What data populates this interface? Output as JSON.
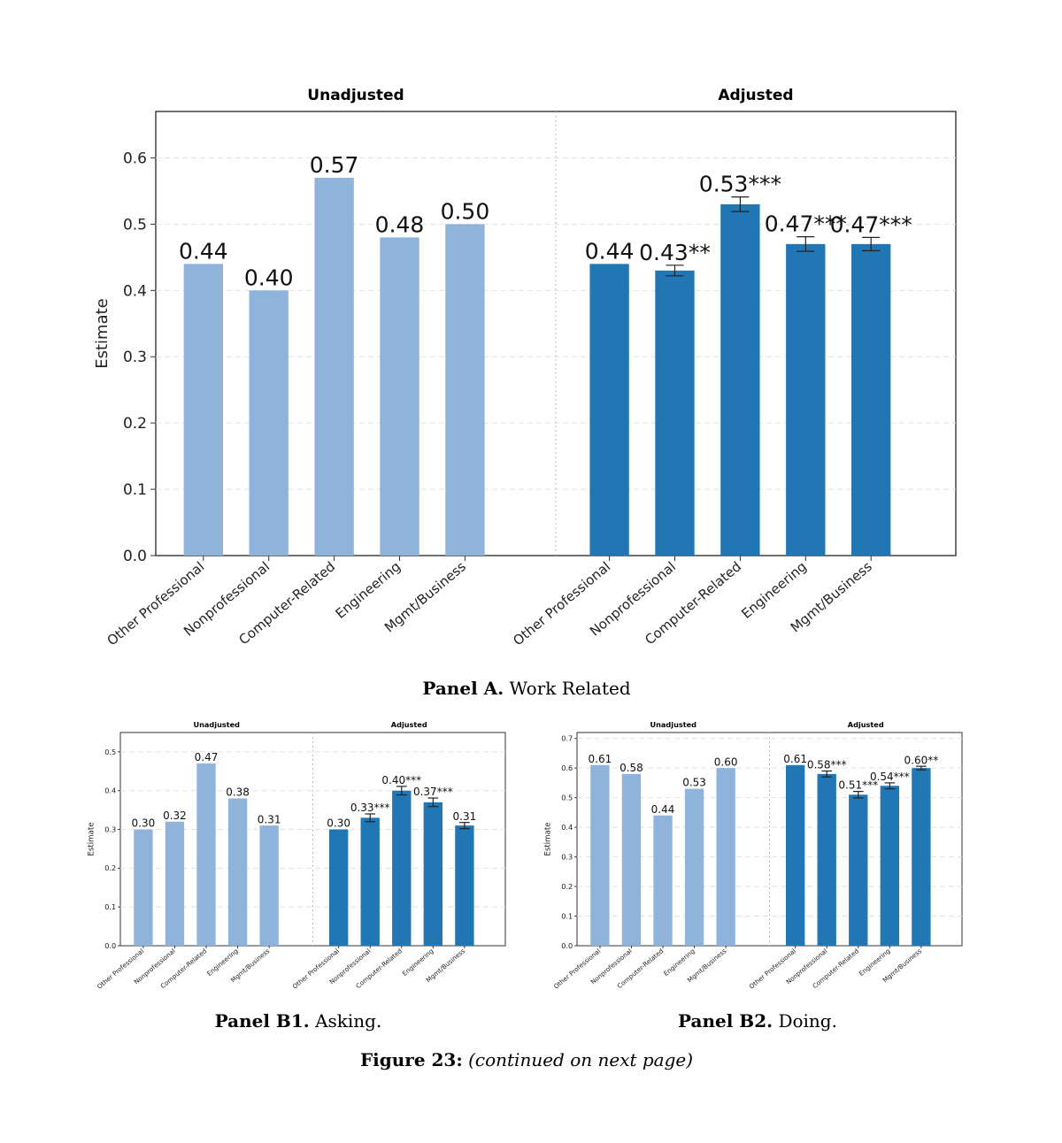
{
  "colors": {
    "unadjusted": "#8fb3da",
    "adjusted": "#2077b4",
    "axis": "#333333",
    "grid": "#e2e2e2"
  },
  "captions": {
    "panel_a_label": "Panel A.",
    "panel_a_text": "Work Related",
    "panel_b1_label": "Panel B1.",
    "panel_b1_text": "Asking.",
    "panel_b2_label": "Panel B2.",
    "panel_b2_text": "Doing.",
    "figure_label": "Figure 23:",
    "figure_text": "(continued on next page)"
  },
  "chart_data": [
    {
      "id": "panelA",
      "type": "bar",
      "ylabel": "Estimate",
      "ylim": [
        0,
        0.67
      ],
      "yticks": [
        0.0,
        0.1,
        0.2,
        0.3,
        0.4,
        0.5,
        0.6
      ],
      "ytick_labels": [
        "0.0",
        "0.1",
        "0.2",
        "0.3",
        "0.4",
        "0.5",
        "0.6"
      ],
      "grid": true,
      "groups": [
        {
          "title": "Unadjusted",
          "categories": [
            "Other Professional",
            "Nonprofessional",
            "Computer-Related",
            "Engineering",
            "Mgmt/Business"
          ],
          "values": [
            0.44,
            0.4,
            0.57,
            0.48,
            0.5
          ],
          "labels": [
            "0.44",
            "0.40",
            "0.57",
            "0.48",
            "0.50"
          ],
          "errors": [
            0,
            0,
            0,
            0,
            0
          ]
        },
        {
          "title": "Adjusted",
          "categories": [
            "Other Professional",
            "Nonprofessional",
            "Computer-Related",
            "Engineering",
            "Mgmt/Business"
          ],
          "values": [
            0.44,
            0.43,
            0.53,
            0.47,
            0.47
          ],
          "labels": [
            "0.44",
            "0.43**",
            "0.53***",
            "0.47***",
            "0.47***"
          ],
          "errors": [
            0,
            0.008,
            0.011,
            0.011,
            0.01
          ]
        }
      ]
    },
    {
      "id": "panelB1",
      "type": "bar",
      "ylabel": "Estimate",
      "ylim": [
        0,
        0.55
      ],
      "yticks": [
        0.0,
        0.1,
        0.2,
        0.3,
        0.4,
        0.5
      ],
      "ytick_labels": [
        "0.0",
        "0.1",
        "0.2",
        "0.3",
        "0.4",
        "0.5"
      ],
      "grid": true,
      "groups": [
        {
          "title": "Unadjusted",
          "categories": [
            "Other Professional",
            "Nonprofessional",
            "Computer-Related",
            "Engineering",
            "Mgmt/Business"
          ],
          "values": [
            0.3,
            0.32,
            0.47,
            0.38,
            0.31
          ],
          "labels": [
            "0.30",
            "0.32",
            "0.47",
            "0.38",
            "0.31"
          ],
          "errors": [
            0,
            0,
            0,
            0,
            0
          ]
        },
        {
          "title": "Adjusted",
          "categories": [
            "Other Professional",
            "Nonprofessional",
            "Computer-Related",
            "Engineering",
            "Mgmt/Business"
          ],
          "values": [
            0.3,
            0.33,
            0.4,
            0.37,
            0.31
          ],
          "labels": [
            "0.30",
            "0.33***",
            "0.40***",
            "0.37***",
            "0.31"
          ],
          "errors": [
            0,
            0.01,
            0.011,
            0.011,
            0.008
          ]
        }
      ]
    },
    {
      "id": "panelB2",
      "type": "bar",
      "ylabel": "Estimate",
      "ylim": [
        0,
        0.72
      ],
      "yticks": [
        0.0,
        0.1,
        0.2,
        0.3,
        0.4,
        0.5,
        0.6,
        0.7
      ],
      "ytick_labels": [
        "0.0",
        "0.1",
        "0.2",
        "0.3",
        "0.4",
        "0.5",
        "0.6",
        "0.7"
      ],
      "grid": true,
      "groups": [
        {
          "title": "Unadjusted",
          "categories": [
            "Other Professional",
            "Nonprofessional",
            "Computer-Related",
            "Engineering",
            "Mgmt/Business"
          ],
          "values": [
            0.61,
            0.58,
            0.44,
            0.53,
            0.6
          ],
          "labels": [
            "0.61",
            "0.58",
            "0.44",
            "0.53",
            "0.60"
          ],
          "errors": [
            0,
            0,
            0,
            0,
            0
          ]
        },
        {
          "title": "Adjusted",
          "categories": [
            "Other Professional",
            "Nonprofessional",
            "Computer-Related",
            "Engineering",
            "Mgmt/Business"
          ],
          "values": [
            0.61,
            0.58,
            0.51,
            0.54,
            0.6
          ],
          "labels": [
            "0.61",
            "0.58***",
            "0.51***",
            "0.54***",
            "0.60**"
          ],
          "errors": [
            0,
            0.01,
            0.011,
            0.01,
            0.006
          ]
        }
      ]
    }
  ]
}
